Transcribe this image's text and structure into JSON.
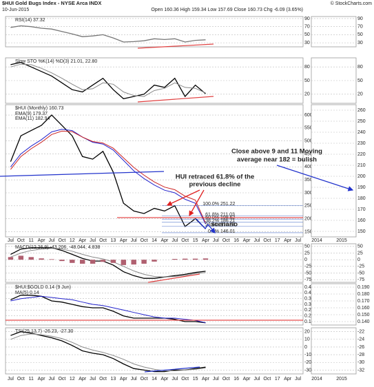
{
  "header": {
    "title": "$HUI Gold Bugs Index - NYSE Arca INDX",
    "date": "10-Jun-2015",
    "ohlc": "Open 160.36 High 159.34 Low 157.69 Close 160.73 Chg -6.09 (3.65%)",
    "credit": "© StockCharts.com"
  },
  "chart_data": [
    {
      "type": "line",
      "title": "RSI(14) 37.32",
      "ylim": [
        20,
        95
      ],
      "yticks": [
        30,
        50,
        70,
        90
      ],
      "series": [
        {
          "name": "RSI",
          "color": "#777777",
          "values": [
            68,
            72,
            70,
            66,
            64,
            58,
            52,
            45,
            47,
            50,
            42,
            32,
            33,
            35,
            40,
            38,
            40,
            32,
            36,
            37.32
          ]
        }
      ],
      "inset": {
        "ylim": [
          20,
          95
        ],
        "yticks": [
          30,
          50,
          70,
          90
        ]
      }
    },
    {
      "type": "line",
      "title": "Slow STO %K(14) %D(3) 21.01, 22.80",
      "ylim": [
        0,
        100
      ],
      "yticks": [
        20,
        50,
        80
      ],
      "series": [
        {
          "name": "%K",
          "color": "#000000",
          "values": [
            85,
            90,
            80,
            70,
            60,
            45,
            30,
            25,
            40,
            55,
            30,
            10,
            15,
            20,
            40,
            35,
            55,
            15,
            40,
            21.01
          ]
        },
        {
          "name": "%D",
          "color": "#888888",
          "values": [
            80,
            86,
            85,
            77,
            67,
            55,
            42,
            30,
            32,
            45,
            42,
            25,
            17,
            15,
            28,
            33,
            45,
            35,
            33,
            22.8
          ]
        }
      ],
      "inset": {
        "ylim": [
          0,
          100
        ],
        "yticks": [
          20,
          50,
          80
        ]
      }
    },
    {
      "type": "line",
      "title": "$HUI (Monthly) 160.73",
      "ylim": [
        130,
        640
      ],
      "yticks": [
        150,
        200,
        250,
        300,
        350,
        400,
        450,
        500,
        550,
        600
      ],
      "categories": [
        "Jul",
        "Oct",
        "11",
        "Apr",
        "Jul",
        "Oct",
        "12",
        "Apr",
        "Jul",
        "Oct",
        "13",
        "Apr",
        "Jul",
        "Oct",
        "14",
        "Apr",
        "Jul",
        "Oct",
        "15",
        "Apr",
        "Jul",
        "Oct",
        "16",
        "Apr",
        "Jul",
        "Oct",
        "17",
        "Apr",
        "Jul"
      ],
      "series": [
        {
          "name": "$HUI",
          "color": "#000000",
          "values": [
            420,
            520,
            540,
            560,
            600,
            560,
            520,
            440,
            430,
            460,
            380,
            260,
            230,
            220,
            240,
            230,
            250,
            170,
            200,
            160.73,
            null,
            null,
            null,
            null,
            null,
            null,
            null,
            null,
            null
          ]
        },
        {
          "name": "EMA(9) 179.37",
          "color": "#2222cc",
          "values": [
            400,
            450,
            480,
            505,
            535,
            545,
            540,
            515,
            495,
            488,
            465,
            425,
            385,
            355,
            330,
            310,
            300,
            275,
            260,
            179.37,
            null,
            null,
            null,
            null,
            null,
            null,
            null,
            null,
            null
          ]
        },
        {
          "name": "EMA(11) 182.94",
          "color": "#cc2222",
          "values": [
            390,
            440,
            470,
            495,
            525,
            538,
            536,
            515,
            498,
            492,
            472,
            435,
            398,
            368,
            342,
            322,
            312,
            287,
            272,
            182.94,
            null,
            null,
            null,
            null,
            null,
            null,
            null,
            null,
            null
          ]
        }
      ],
      "fib": [
        {
          "label": "100.0%",
          "value": 251.22
        },
        {
          "label": "61.8%",
          "value": 211.03
        },
        {
          "label": "50.0%",
          "value": 198.62
        },
        {
          "label": "38.2%",
          "value": 186.21
        },
        {
          "label": "23.6%",
          "value": 170.84
        },
        {
          "label": "0.0%",
          "value": 146.01
        }
      ],
      "annotations": [
        "HUI retraced 61.8% of the",
        "previous decline",
        "Close above 9 and 11 Moving",
        "average near 182 = bulish",
        "scenario"
      ],
      "inset": {
        "ylim": [
          145,
          265
        ],
        "yticks": [
          150,
          160,
          170,
          180,
          190,
          200,
          210,
          220,
          230,
          240,
          250,
          260
        ],
        "categories": [
          "2014",
          "2015"
        ]
      }
    },
    {
      "type": "line",
      "title": "MACD(12,26,9) -43.206, -48.044, 4.838",
      "ylim": [
        -85,
        60
      ],
      "yticks": [
        -75,
        -50,
        -25,
        0,
        25,
        50
      ],
      "series": [
        {
          "name": "MACD",
          "color": "#000000",
          "values": [
            20,
            40,
            45,
            45,
            45,
            35,
            20,
            5,
            -5,
            -5,
            -20,
            -45,
            -60,
            -70,
            -70,
            -65,
            -60,
            -55,
            -48,
            -43.206
          ]
        },
        {
          "name": "Signal",
          "color": "#888888",
          "values": [
            10,
            25,
            35,
            40,
            43,
            40,
            32,
            20,
            10,
            3,
            -8,
            -25,
            -42,
            -55,
            -63,
            -65,
            -63,
            -59,
            -52,
            -48.044
          ]
        },
        {
          "name": "Histogram",
          "kind": "bar",
          "color": "#b06070",
          "values": [
            10,
            15,
            10,
            5,
            2,
            -5,
            -12,
            -15,
            -15,
            -8,
            -12,
            -20,
            -18,
            -15,
            -7,
            0,
            3,
            4,
            4,
            4.838
          ]
        }
      ],
      "inset": {
        "ylim": [
          -85,
          60
        ],
        "yticks": [
          -75,
          -50,
          -25,
          0,
          25,
          50
        ]
      }
    },
    {
      "type": "line",
      "title": "$HUI:$GOLD 0.14 (9 Jun)",
      "ylim": [
        0.12,
        0.48
      ],
      "yticks": [
        0.15,
        0.2,
        0.25,
        0.3,
        0.35,
        0.4,
        0.45
      ],
      "series": [
        {
          "name": "$HUI:$GOLD",
          "color": "#000000",
          "values": [
            0.34,
            0.38,
            0.38,
            0.37,
            0.33,
            0.32,
            0.3,
            0.28,
            0.27,
            0.27,
            0.24,
            0.2,
            0.18,
            0.18,
            0.18,
            0.18,
            0.17,
            0.15,
            0.15,
            0.14
          ]
        },
        {
          "name": "MA(5) 0.14",
          "color": "#2222cc",
          "values": [
            0.33,
            0.35,
            0.36,
            0.37,
            0.36,
            0.35,
            0.34,
            0.32,
            0.3,
            0.29,
            0.27,
            0.25,
            0.23,
            0.21,
            0.19,
            0.18,
            0.18,
            0.17,
            0.16,
            0.14
          ]
        }
      ],
      "inset": {
        "ylim": [
          0.135,
          0.195
        ],
        "yticks": [
          {
            "value": 0.14,
            "label": "0.140"
          },
          {
            "value": 0.15,
            "label": "0.150"
          },
          {
            "value": 0.16,
            "label": "0.160"
          },
          {
            "value": 0.17,
            "label": "0.170"
          },
          {
            "value": 0.18,
            "label": "0.180"
          },
          {
            "value": 0.19,
            "label": "0.190"
          }
        ]
      }
    },
    {
      "type": "line",
      "title": "TSI(25,13,7) -26.23, -27.30",
      "ylim": [
        -35,
        25
      ],
      "yticks": [
        -30,
        -20,
        -10,
        0,
        10,
        20
      ],
      "series": [
        {
          "name": "TSI",
          "color": "#000000",
          "values": [
            15,
            20,
            18,
            15,
            12,
            8,
            2,
            -5,
            -8,
            -10,
            -15,
            -22,
            -28,
            -30,
            -32,
            -32,
            -30,
            -30,
            -28,
            -26.23
          ]
        },
        {
          "name": "Signal",
          "color": "#888888",
          "values": [
            10,
            15,
            17,
            16,
            14,
            11,
            6,
            0,
            -4,
            -7,
            -11,
            -16,
            -22,
            -26,
            -29,
            -31,
            -31,
            -30,
            -29,
            -27.3
          ]
        }
      ],
      "inset": {
        "ylim": [
          -33,
          -21
        ],
        "yticks": [
          -22,
          -24,
          -26,
          -28,
          -30,
          -32
        ]
      }
    }
  ]
}
